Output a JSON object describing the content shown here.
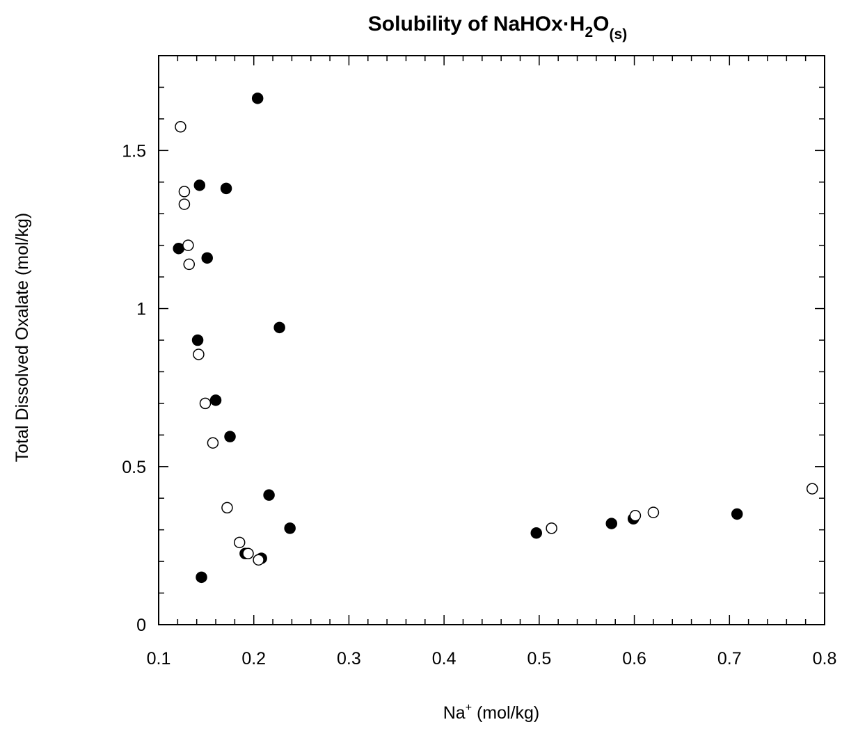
{
  "chart_data": {
    "type": "scatter",
    "title": {
      "main": "Solubility of NaHOx·H",
      "sub1": "2",
      "mid": "O",
      "sub2": "(s)"
    },
    "xlabel": {
      "main": "Na",
      "sup": "+",
      "rest": " (mol/kg)"
    },
    "ylabel": "Total Dissolved Oxalate (mol/kg)",
    "xlim": [
      0.1,
      0.8
    ],
    "ylim": [
      0,
      1.8
    ],
    "x_ticks": [
      "0.1",
      "0.2",
      "0.3",
      "0.4",
      "0.5",
      "0.6",
      "0.7",
      "0.8"
    ],
    "y_ticks": [
      "0",
      "0.5",
      "1",
      "1.5"
    ],
    "grid": false,
    "series": [
      {
        "marker": "filled-circle",
        "points": [
          {
            "x": 0.204,
            "y": 1.665
          },
          {
            "x": 0.143,
            "y": 1.39
          },
          {
            "x": 0.171,
            "y": 1.38
          },
          {
            "x": 0.121,
            "y": 1.19
          },
          {
            "x": 0.151,
            "y": 1.16
          },
          {
            "x": 0.227,
            "y": 0.94
          },
          {
            "x": 0.141,
            "y": 0.9
          },
          {
            "x": 0.16,
            "y": 0.71
          },
          {
            "x": 0.175,
            "y": 0.595
          },
          {
            "x": 0.216,
            "y": 0.41
          },
          {
            "x": 0.238,
            "y": 0.305
          },
          {
            "x": 0.191,
            "y": 0.225
          },
          {
            "x": 0.208,
            "y": 0.21
          },
          {
            "x": 0.145,
            "y": 0.15
          },
          {
            "x": 0.497,
            "y": 0.29
          },
          {
            "x": 0.576,
            "y": 0.32
          },
          {
            "x": 0.599,
            "y": 0.335
          },
          {
            "x": 0.708,
            "y": 0.35
          }
        ]
      },
      {
        "marker": "open-circle",
        "points": [
          {
            "x": 0.123,
            "y": 1.575
          },
          {
            "x": 0.127,
            "y": 1.37
          },
          {
            "x": 0.127,
            "y": 1.33
          },
          {
            "x": 0.131,
            "y": 1.2
          },
          {
            "x": 0.132,
            "y": 1.14
          },
          {
            "x": 0.142,
            "y": 0.855
          },
          {
            "x": 0.149,
            "y": 0.7
          },
          {
            "x": 0.157,
            "y": 0.575
          },
          {
            "x": 0.172,
            "y": 0.37
          },
          {
            "x": 0.185,
            "y": 0.26
          },
          {
            "x": 0.194,
            "y": 0.225
          },
          {
            "x": 0.205,
            "y": 0.205
          },
          {
            "x": 0.513,
            "y": 0.305
          },
          {
            "x": 0.601,
            "y": 0.345
          },
          {
            "x": 0.62,
            "y": 0.355
          },
          {
            "x": 0.787,
            "y": 0.43
          }
        ]
      }
    ]
  }
}
